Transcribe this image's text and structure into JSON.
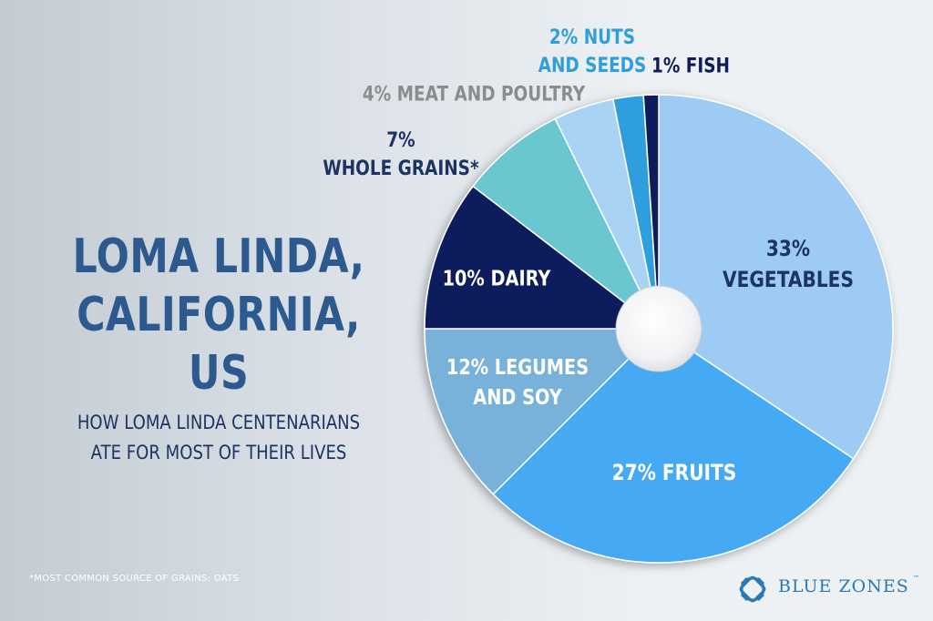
{
  "header": {
    "title_line1": "LOMA LINDA,",
    "title_line2": "CALIFORNIA, US",
    "subtitle_line1": "HOW LOMA LINDA CENTENARIANS",
    "subtitle_line2": "ATE FOR MOST OF THEIR LIVES"
  },
  "footnote": "*MOST COMMON SOURCE OF GRAINS: OATS",
  "brand": {
    "logo_text": "BLUE ZONES",
    "trademark": "™",
    "icon": "blue-zones-knot-icon",
    "color": "#2a79b4"
  },
  "colors": {
    "title": "#2c5a8f",
    "subtitle": "#1d3462",
    "footnote": "#ffffff"
  },
  "chart_data": {
    "type": "pie",
    "title": "",
    "donut_hole": true,
    "slices": [
      {
        "label_lines": [
          "33%",
          "VEGETABLES"
        ],
        "value": 33,
        "color": "#9ecbf3",
        "label_color": "#1d3462"
      },
      {
        "label_lines": [
          "27% FRUITS"
        ],
        "value": 27,
        "color": "#45a9f4",
        "label_color": "#ffffff"
      },
      {
        "label_lines": [
          "12% LEGUMES",
          "AND SOY"
        ],
        "value": 12,
        "color": "#78b1da",
        "label_color": "#ffffff"
      },
      {
        "label_lines": [
          "10% DAIRY"
        ],
        "value": 10,
        "color": "#0d1d5c",
        "label_color": "#ffffff"
      },
      {
        "label_lines": [
          "7%",
          "WHOLE GRAINS*"
        ],
        "value": 7,
        "color": "#6ac6cf",
        "label_color": "#1d3462"
      },
      {
        "label_lines": [
          "4% MEAT AND POULTRY"
        ],
        "value": 4,
        "color": "#a9d3f5",
        "label_color": "#8c8c8c"
      },
      {
        "label_lines": [
          "2% NUTS",
          "AND SEEDS"
        ],
        "value": 2,
        "color": "#2f9fdc",
        "label_color": "#2f9fdc"
      },
      {
        "label_lines": [
          "1% FISH"
        ],
        "value": 1,
        "color": "#0d1d5c",
        "label_color": "#0d1d5c"
      }
    ]
  }
}
